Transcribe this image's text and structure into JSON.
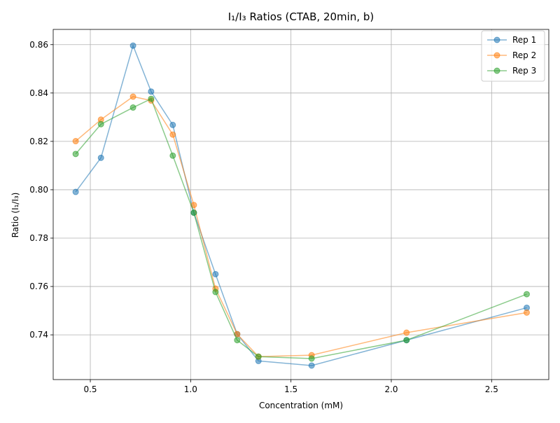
{
  "chart_data": {
    "type": "line",
    "title": "I₁/I₃ Ratios (CTAB, 20min, b)",
    "xlabel": "Concentration (mM)",
    "ylabel": "Ratio (I₁/I₃)",
    "xlim": [
      0.315,
      2.785
    ],
    "ylim": [
      0.7215,
      0.8663
    ],
    "xticks": [
      0.5,
      1.0,
      1.5,
      2.0,
      2.5
    ],
    "xtick_labels": [
      "0.5",
      "1.0",
      "1.5",
      "2.0",
      "2.5"
    ],
    "yticks": [
      0.74,
      0.76,
      0.78,
      0.8,
      0.82,
      0.84,
      0.86
    ],
    "ytick_labels": [
      "0.74",
      "0.76",
      "0.78",
      "0.80",
      "0.82",
      "0.84",
      "0.86"
    ],
    "grid": true,
    "legend_position": "top-right",
    "series": [
      {
        "name": "Rep 1",
        "color": "#1f77b4",
        "x": [
          0.427,
          0.553,
          0.713,
          0.803,
          0.911,
          1.016,
          1.124,
          1.232,
          1.338,
          1.603,
          2.076,
          2.675
        ],
        "y": [
          0.7991,
          0.8132,
          0.8596,
          0.8406,
          0.8268,
          0.7905,
          0.7651,
          0.7403,
          0.7292,
          0.7273,
          0.7378,
          0.7512
        ]
      },
      {
        "name": "Rep 2",
        "color": "#ff7f0e",
        "x": [
          0.427,
          0.553,
          0.713,
          0.803,
          0.911,
          1.016,
          1.124,
          1.232,
          1.338,
          1.603,
          2.076,
          2.675
        ],
        "y": [
          0.8201,
          0.829,
          0.8385,
          0.8369,
          0.8228,
          0.7937,
          0.7591,
          0.7403,
          0.731,
          0.7316,
          0.7409,
          0.7492
        ]
      },
      {
        "name": "Rep 3",
        "color": "#2ca02c",
        "x": [
          0.427,
          0.553,
          0.713,
          0.803,
          0.911,
          1.016,
          1.124,
          1.232,
          1.338,
          1.603,
          2.076,
          2.675
        ],
        "y": [
          0.8148,
          0.8271,
          0.834,
          0.8376,
          0.8141,
          0.7905,
          0.7577,
          0.7378,
          0.731,
          0.7302,
          0.7378,
          0.7568
        ]
      }
    ]
  }
}
